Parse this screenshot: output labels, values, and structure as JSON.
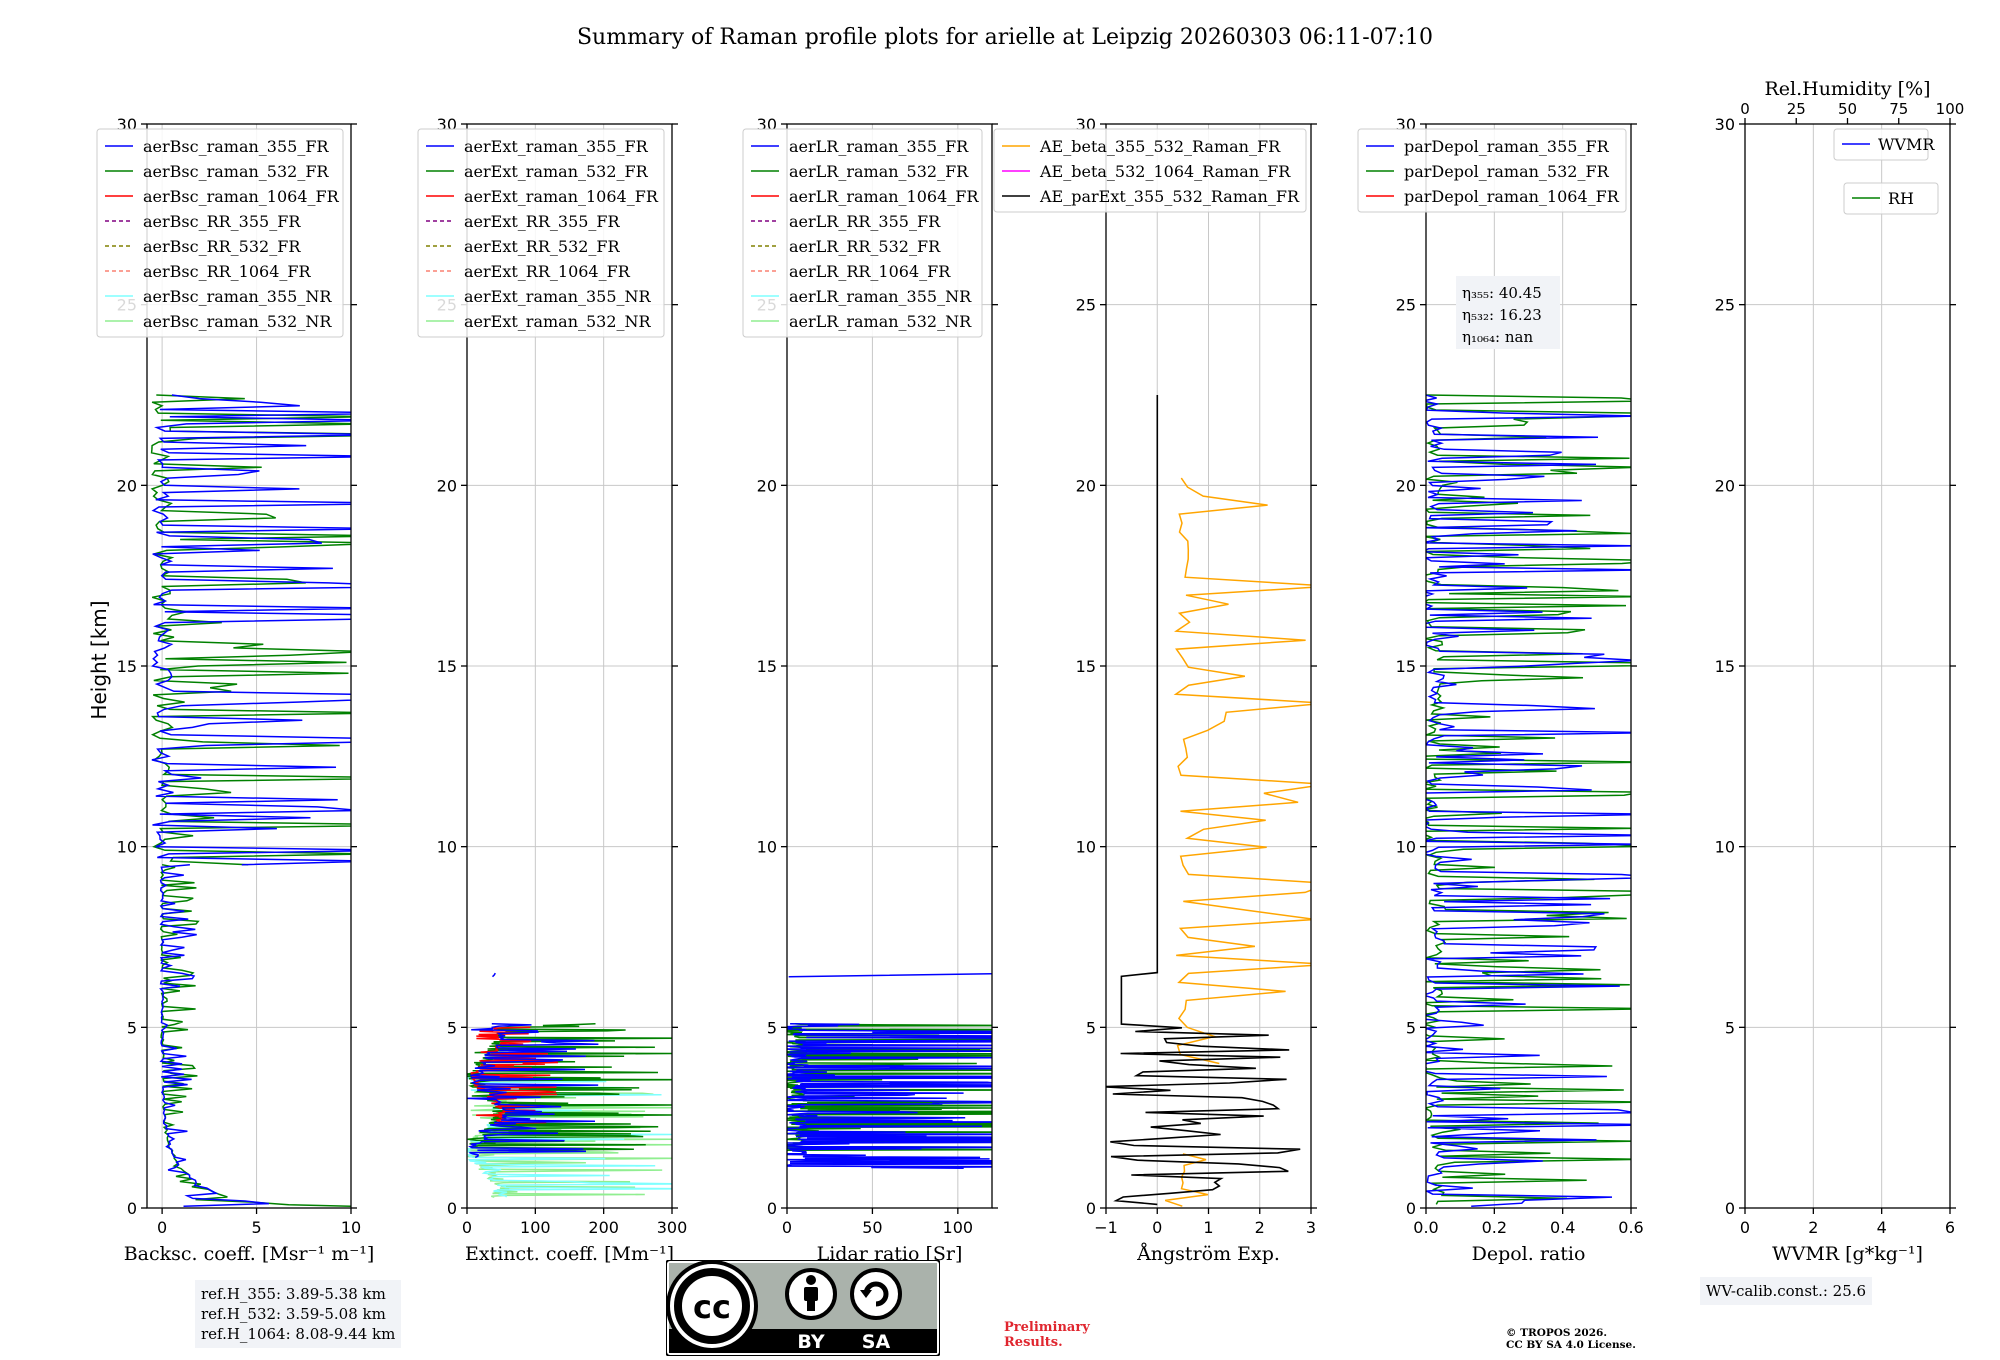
{
  "figure": {
    "title": "Summary of Raman profile plots for arielle at Leipzig 20260303 06:11-07:10",
    "ylabel": "Height [km]",
    "ref_heights": [
      "ref.H_355: 3.89-5.38 km",
      "ref.H_532: 3.59-5.08 km",
      "ref.H_1064: 8.08-9.44 km"
    ],
    "wv_calib": "WV-calib.const.: 25.6",
    "preliminary": "Preliminary Results.",
    "copyright": [
      "© TROPOS 2026.",
      "CC BY SA 4.0 License."
    ],
    "license_badge": {
      "by": "BY",
      "sa": "SA",
      "icon_name": "cc-by-sa-logo"
    }
  },
  "colors": {
    "blue": "#0000ff",
    "green": "#008000",
    "red": "#ff0000",
    "purple": "#800080",
    "olive": "#808000",
    "salmon": "#fa8072",
    "cyan": "#7fffff",
    "lightgreen": "#90ee90",
    "orange": "#ffa500",
    "magenta": "#ff00ff",
    "black": "#000000",
    "grid": "#c8c8c8"
  },
  "chart_data": [
    {
      "id": "bsc",
      "type": "line",
      "xlabel": "Backsc. coeff. [Msr⁻¹ m⁻¹]",
      "xlim": [
        -0.8,
        10
      ],
      "xticks": [
        0,
        5,
        10
      ],
      "xtick_labels": [
        "0",
        "5",
        "10"
      ],
      "ylim": [
        0,
        30
      ],
      "yticks": [
        0,
        5,
        10,
        15,
        20,
        25,
        30
      ],
      "legend_position": "top-left",
      "series": [
        {
          "name": "aerBsc_raman_355_FR",
          "color": "blue",
          "style": "solid"
        },
        {
          "name": "aerBsc_raman_532_FR",
          "color": "green",
          "style": "solid"
        },
        {
          "name": "aerBsc_raman_1064_FR",
          "color": "red",
          "style": "solid"
        },
        {
          "name": "aerBsc_RR_355_FR",
          "color": "purple",
          "style": "dashed"
        },
        {
          "name": "aerBsc_RR_532_FR",
          "color": "olive",
          "style": "dashed"
        },
        {
          "name": "aerBsc_RR_1064_FR",
          "color": "salmon",
          "style": "dashed"
        },
        {
          "name": "aerBsc_raman_355_NR",
          "color": "cyan",
          "style": "solid"
        },
        {
          "name": "aerBsc_raman_532_NR",
          "color": "lightgreen",
          "style": "solid"
        }
      ]
    },
    {
      "id": "ext",
      "type": "line",
      "xlabel": "Extinct. coeff. [Mm⁻¹]",
      "xlim": [
        0,
        300
      ],
      "xticks": [
        0,
        100,
        200,
        300
      ],
      "xtick_labels": [
        "0",
        "100",
        "200",
        "300"
      ],
      "ylim": [
        0,
        30
      ],
      "yticks": [
        0,
        5,
        10,
        15,
        20,
        25,
        30
      ],
      "legend_position": "top-left",
      "series": [
        {
          "name": "aerExt_raman_355_FR",
          "color": "blue",
          "style": "solid"
        },
        {
          "name": "aerExt_raman_532_FR",
          "color": "green",
          "style": "solid"
        },
        {
          "name": "aerExt_raman_1064_FR",
          "color": "red",
          "style": "solid"
        },
        {
          "name": "aerExt_RR_355_FR",
          "color": "purple",
          "style": "dashed"
        },
        {
          "name": "aerExt_RR_532_FR",
          "color": "olive",
          "style": "dashed"
        },
        {
          "name": "aerExt_RR_1064_FR",
          "color": "salmon",
          "style": "dashed"
        },
        {
          "name": "aerExt_raman_355_NR",
          "color": "cyan",
          "style": "solid"
        },
        {
          "name": "aerExt_raman_532_NR",
          "color": "lightgreen",
          "style": "solid"
        }
      ]
    },
    {
      "id": "lr",
      "type": "line",
      "xlabel": "Lidar ratio [Sr]",
      "xlim": [
        0,
        120
      ],
      "xticks": [
        0,
        50,
        100
      ],
      "xtick_labels": [
        "0",
        "50",
        "100"
      ],
      "ylim": [
        0,
        30
      ],
      "yticks": [
        0,
        5,
        10,
        15,
        20,
        25,
        30
      ],
      "legend_position": "top-left",
      "series": [
        {
          "name": "aerLR_raman_355_FR",
          "color": "blue",
          "style": "solid"
        },
        {
          "name": "aerLR_raman_532_FR",
          "color": "green",
          "style": "solid"
        },
        {
          "name": "aerLR_raman_1064_FR",
          "color": "red",
          "style": "solid"
        },
        {
          "name": "aerLR_RR_355_FR",
          "color": "purple",
          "style": "dashed"
        },
        {
          "name": "aerLR_RR_532_FR",
          "color": "olive",
          "style": "dashed"
        },
        {
          "name": "aerLR_RR_1064_FR",
          "color": "salmon",
          "style": "dashed"
        },
        {
          "name": "aerLR_raman_355_NR",
          "color": "cyan",
          "style": "solid"
        },
        {
          "name": "aerLR_raman_532_NR",
          "color": "lightgreen",
          "style": "solid"
        }
      ]
    },
    {
      "id": "ae",
      "type": "line",
      "xlabel": "Ångström Exp.",
      "xlim": [
        -1,
        3
      ],
      "xticks": [
        -1,
        0,
        1,
        2,
        3
      ],
      "xtick_labels": [
        "−1",
        "0",
        "1",
        "2",
        "3"
      ],
      "ylim": [
        0,
        30
      ],
      "yticks": [
        0,
        5,
        10,
        15,
        20,
        25,
        30
      ],
      "legend_position": "top-center",
      "series": [
        {
          "name": "AE_beta_355_532_Raman_FR",
          "color": "orange",
          "style": "solid"
        },
        {
          "name": "AE_beta_532_1064_Raman_FR",
          "color": "magenta",
          "style": "solid"
        },
        {
          "name": "AE_parExt_355_532_Raman_FR",
          "color": "black",
          "style": "solid"
        }
      ]
    },
    {
      "id": "depol",
      "type": "line",
      "xlabel": "Depol. ratio",
      "xlim": [
        0,
        0.6
      ],
      "xticks": [
        0,
        0.2,
        0.4,
        0.6
      ],
      "xtick_labels": [
        "0.0",
        "0.2",
        "0.4",
        "0.6"
      ],
      "ylim": [
        0,
        30
      ],
      "yticks": [
        0,
        5,
        10,
        15,
        20,
        25,
        30
      ],
      "legend_position": "top-left",
      "annotation": [
        "η₃₅₅: 40.45",
        "η₅₃₂: 16.23",
        "η₁₀₆₄: nan"
      ],
      "series": [
        {
          "name": "parDepol_raman_355_FR",
          "color": "blue",
          "style": "solid"
        },
        {
          "name": "parDepol_raman_532_FR",
          "color": "green",
          "style": "solid"
        },
        {
          "name": "parDepol_raman_1064_FR",
          "color": "red",
          "style": "solid"
        }
      ]
    },
    {
      "id": "wv",
      "type": "line",
      "xlabel": "WVMR [g*kg⁻¹]",
      "top_xlabel": "Rel.Humidity [%]",
      "xlim": [
        0,
        6
      ],
      "xticks": [
        0,
        2,
        4,
        6
      ],
      "xtick_labels": [
        "0",
        "2",
        "4",
        "6"
      ],
      "top_xlim": [
        0,
        100
      ],
      "top_xticks": [
        0,
        25,
        50,
        75,
        100
      ],
      "top_xtick_labels": [
        "0",
        "25",
        "50",
        "75",
        "100"
      ],
      "ylim": [
        0,
        30
      ],
      "yticks": [
        0,
        5,
        10,
        15,
        20,
        25,
        30
      ],
      "legend_position": "top-right",
      "series": [
        {
          "name": "WVMR",
          "color": "blue",
          "style": "solid"
        },
        {
          "name": "RH",
          "color": "green",
          "style": "solid"
        }
      ]
    }
  ]
}
